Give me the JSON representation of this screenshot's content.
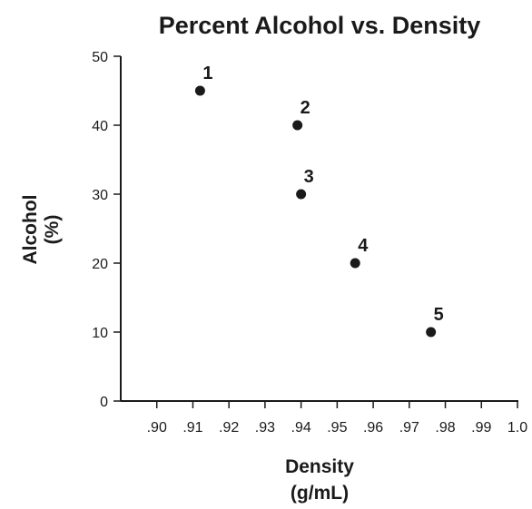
{
  "chart_data": {
    "type": "scatter",
    "title": "Percent Alcohol vs. Density",
    "xlabel": [
      "Density",
      "(g/mL)"
    ],
    "ylabel": [
      "Alcohol",
      "(%)"
    ],
    "xlim": [
      0.89,
      1.0
    ],
    "ylim": [
      0,
      50
    ],
    "x_ticks": [
      0.9,
      0.91,
      0.92,
      0.93,
      0.94,
      0.95,
      0.96,
      0.97,
      0.98,
      0.99,
      1.0
    ],
    "x_tick_labels": [
      ".90",
      ".91",
      ".92",
      ".93",
      ".94",
      ".95",
      ".96",
      ".97",
      ".98",
      ".99",
      "1.0"
    ],
    "y_ticks": [
      0,
      10,
      20,
      30,
      40,
      50
    ],
    "y_tick_labels": [
      "0",
      "10",
      "20",
      "30",
      "40",
      "50"
    ],
    "grid": false,
    "points": [
      {
        "label": "1",
        "x": 0.912,
        "y": 45
      },
      {
        "label": "2",
        "x": 0.939,
        "y": 40
      },
      {
        "label": "3",
        "x": 0.94,
        "y": 30
      },
      {
        "label": "4",
        "x": 0.955,
        "y": 20
      },
      {
        "label": "5",
        "x": 0.976,
        "y": 10
      }
    ]
  }
}
